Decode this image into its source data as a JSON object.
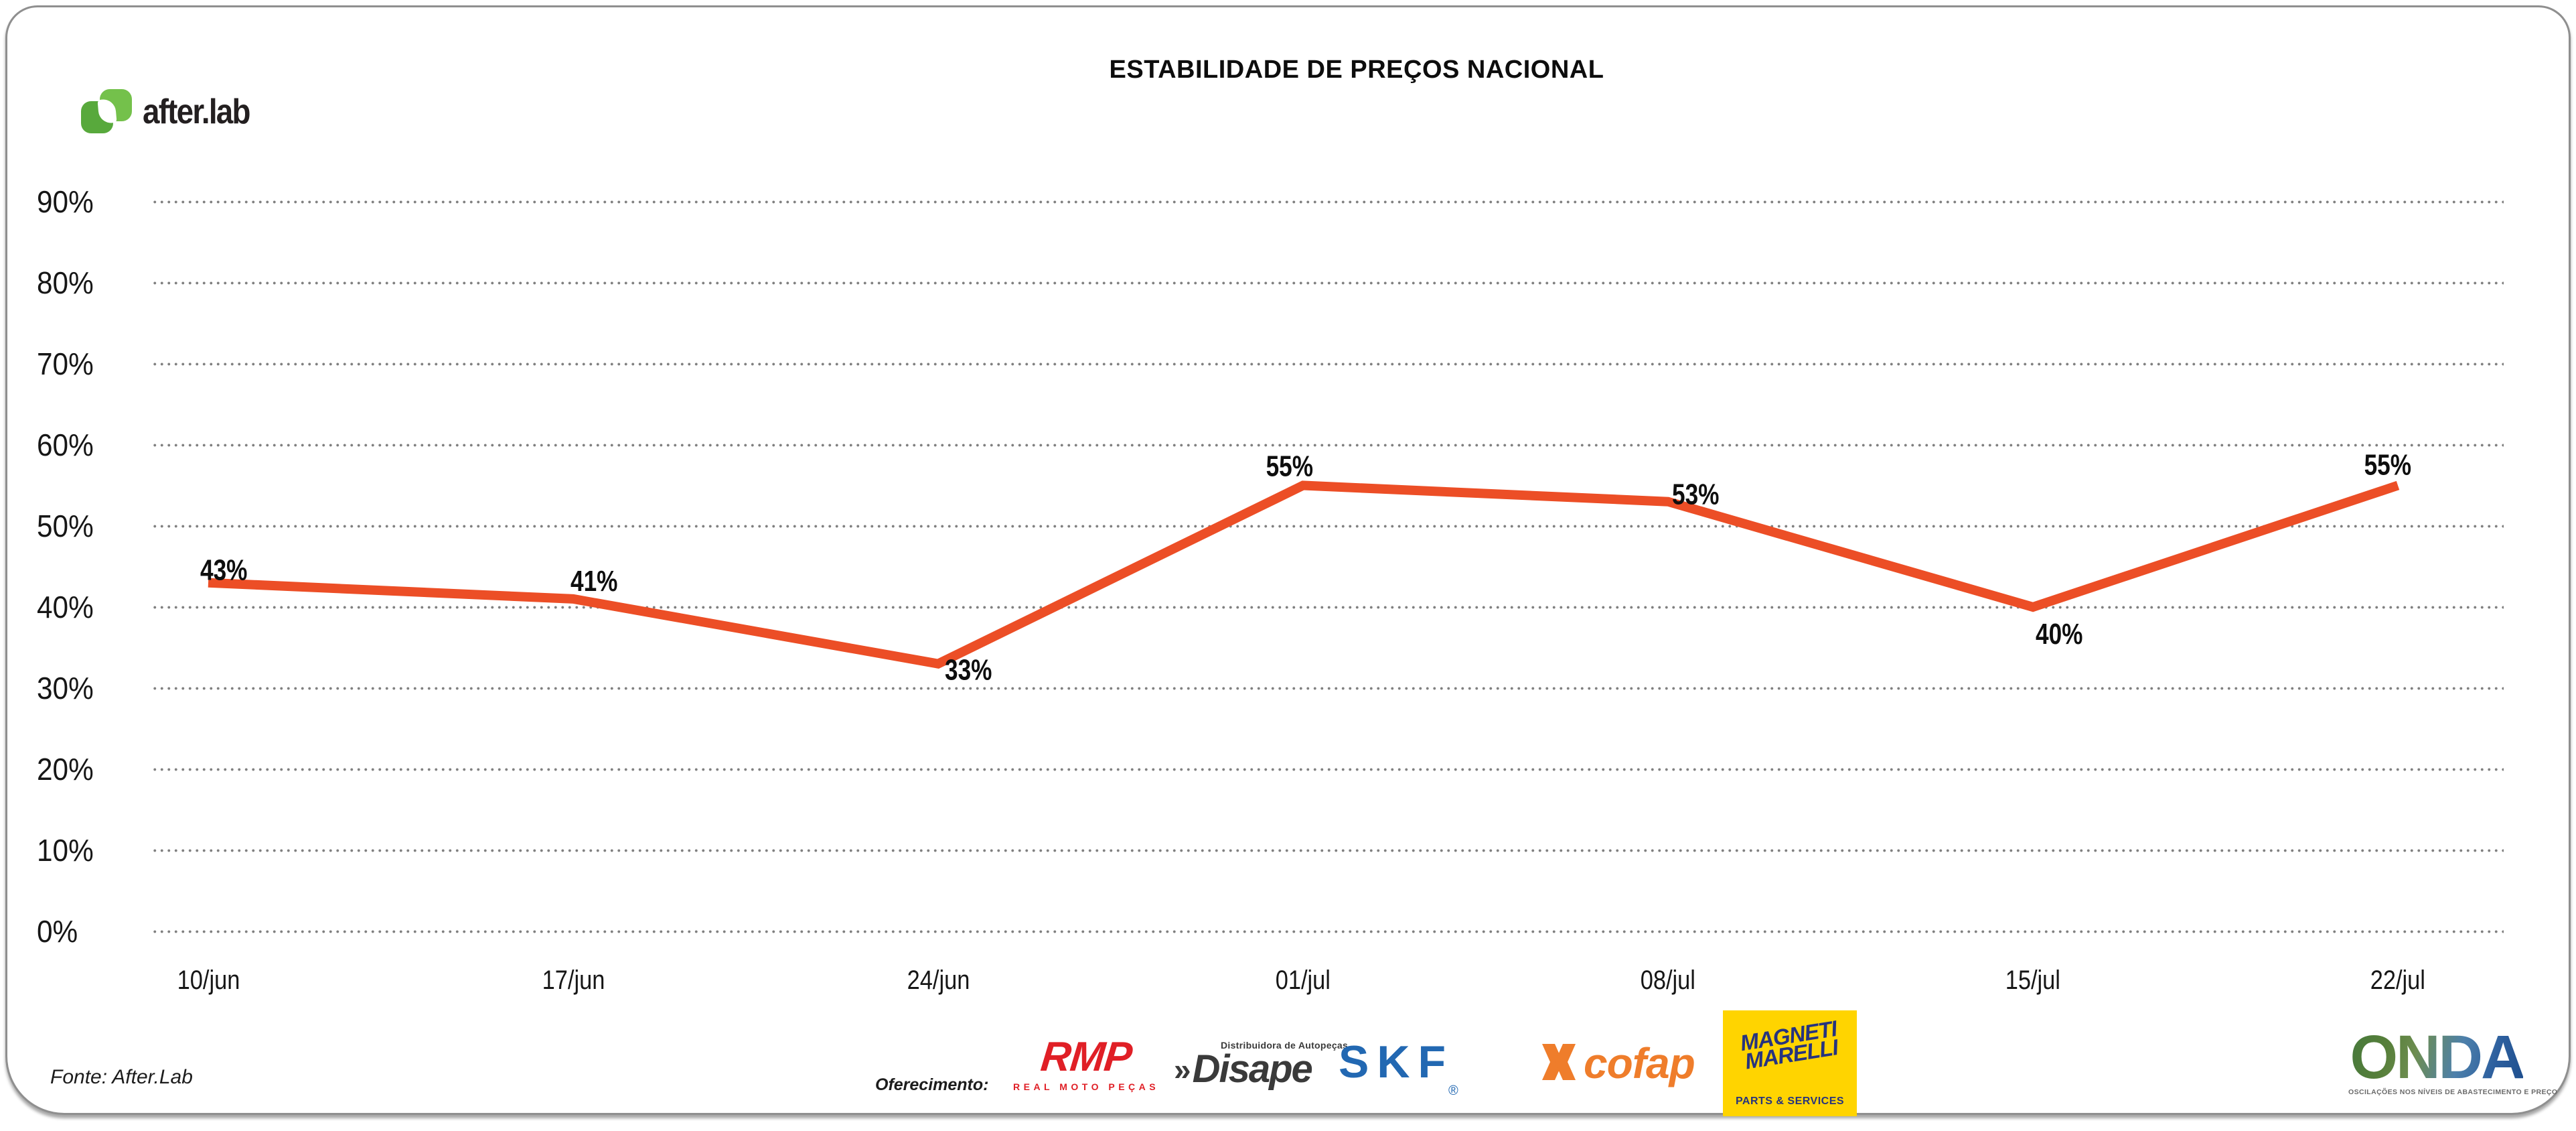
{
  "brand": {
    "name": "after.lab",
    "green_light": "#74C14B",
    "green_dark": "#58A93C"
  },
  "title": "ESTABILIDADE DE PREÇOS NACIONAL",
  "footer": {
    "source": "Fonte: After.Lab",
    "offering_label": "Oferecimento:",
    "sponsors": {
      "rmp": {
        "name": "RMP",
        "tagline": "REAL MOTO PEÇAS",
        "color": "#E01F26"
      },
      "disape": {
        "chevrons": "»",
        "name": "Disape",
        "tagline": "Distribuidora de Autopeças",
        "color": "#3A3A3A"
      },
      "skf": {
        "name": "SKF",
        "registered": "®",
        "color": "#2268B2"
      },
      "cofap": {
        "name": "cofap",
        "color": "#EF7D2B"
      },
      "magneti": {
        "line1": "MAGNETI",
        "line2": "MARELLI",
        "tagline": "PARTS & SERVICES",
        "bg": "#FFD400",
        "fg": "#26337F"
      },
      "onda": {
        "name": "ONDA",
        "tagline": "OSCILAÇÕES NOS NÍVEIS DE ABASTECIMENTO E PREÇO"
      }
    }
  },
  "chart_data": {
    "type": "line",
    "title": "ESTABILIDADE DE PREÇOS NACIONAL",
    "categories": [
      "10/jun",
      "17/jun",
      "24/jun",
      "01/jul",
      "08/jul",
      "15/jul",
      "22/jul"
    ],
    "values": [
      43,
      41,
      33,
      55,
      53,
      40,
      55
    ],
    "point_labels": [
      "43%",
      "41%",
      "33%",
      "55%",
      "53%",
      "40%",
      "55%"
    ],
    "xlabel": "",
    "ylabel": "",
    "ylim": [
      0,
      90
    ],
    "y_tick_step": 10,
    "y_tick_labels": [
      "0%",
      "10%",
      "20%",
      "30%",
      "40%",
      "50%",
      "60%",
      "70%",
      "80%",
      "90%"
    ],
    "grid": "horizontal-dotted",
    "grid_color": "#7f7f7f",
    "legend": "none",
    "line_color": "#EC4E26"
  }
}
